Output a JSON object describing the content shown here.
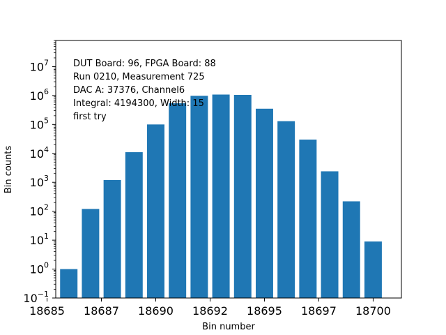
{
  "chart_data": {
    "type": "bar",
    "xlabel": "Bin number",
    "ylabel": "Bin counts",
    "yscale": "log",
    "xlim": [
      18685.4,
      18701.3
    ],
    "ylim": [
      0.1,
      80000000
    ],
    "grid": false,
    "x": [
      18686,
      18687,
      18688,
      18689,
      18690,
      18691,
      18692,
      18693,
      18694,
      18695,
      18696,
      18697,
      18698,
      18699,
      18700
    ],
    "values": [
      1,
      120,
      1200,
      11000,
      100000,
      540000,
      980000,
      1080000,
      1050000,
      350000,
      130000,
      30000,
      2400,
      220,
      9
    ],
    "bar_color": "#1f77b4",
    "x_ticks": [
      {
        "value": 18685,
        "label": "18685"
      },
      {
        "value": 18687.5,
        "label": "18687"
      },
      {
        "value": 18690,
        "label": "18690"
      },
      {
        "value": 18692.5,
        "label": "18692"
      },
      {
        "value": 18695,
        "label": "18695"
      },
      {
        "value": 18697.5,
        "label": "18697"
      },
      {
        "value": 18700,
        "label": "18700"
      }
    ],
    "y_ticks": [
      {
        "value": 0.1,
        "base": "10",
        "exp": "−1"
      },
      {
        "value": 1,
        "base": "10",
        "exp": "0"
      },
      {
        "value": 10,
        "base": "10",
        "exp": "1"
      },
      {
        "value": 100,
        "base": "10",
        "exp": "2"
      },
      {
        "value": 1000,
        "base": "10",
        "exp": "3"
      },
      {
        "value": 10000,
        "base": "10",
        "exp": "4"
      },
      {
        "value": 100000,
        "base": "10",
        "exp": "5"
      },
      {
        "value": 1000000,
        "base": "10",
        "exp": "6"
      },
      {
        "value": 10000000,
        "base": "10",
        "exp": "7"
      }
    ],
    "annotations": [
      "DUT Board: 96, FPGA Board: 88",
      "Run 0210, Measurement 725",
      "DAC A: 37376, Channel6",
      "Integral: 4194300, Width: 15",
      "first try"
    ]
  }
}
